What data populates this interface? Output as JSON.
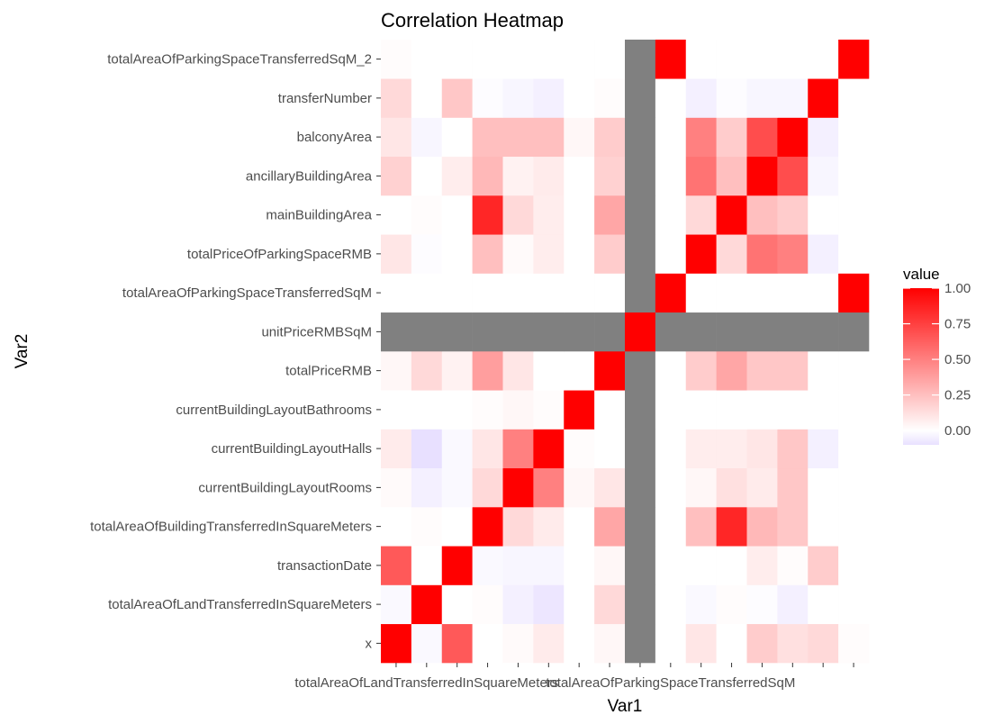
{
  "chart_data": {
    "type": "heatmap",
    "title": "Correlation Heatmap",
    "xlabel": "Var1",
    "ylabel": "Var2",
    "variables": [
      "x",
      "totalAreaOfLandTransferredInSquareMeters",
      "transactionDate",
      "totalAreaOfBuildingTransferredInSquareMeters",
      "currentBuildingLayoutRooms",
      "currentBuildingLayoutHalls",
      "currentBuildingLayoutBathrooms",
      "totalPriceRMB",
      "unitPriceRMBSqM",
      "totalAreaOfParkingSpaceTransferredSqM",
      "totalPriceOfParkingSpaceRMB",
      "mainBuildingArea",
      "ancillaryBuildingArea",
      "balconyArea",
      "transferNumber",
      "totalAreaOfParkingSpaceTransferredSqM_2"
    ],
    "x_tick_labels_visible": [
      "totalAreaOfLandTransferredInSquareMeters",
      "totalAreaOfParkingSpaceTransferredSqM"
    ],
    "matrix": [
      [
        1.0,
        -0.02,
        0.65,
        0.0,
        0.02,
        0.08,
        0.0,
        0.03,
        null,
        0.0,
        0.1,
        0.0,
        0.2,
        0.12,
        0.15,
        0.01
      ],
      [
        -0.02,
        1.0,
        0.0,
        0.01,
        -0.05,
        -0.08,
        0.0,
        0.15,
        null,
        0.0,
        -0.02,
        0.01,
        -0.01,
        -0.05,
        0.0,
        0.0
      ],
      [
        0.65,
        0.0,
        1.0,
        -0.02,
        -0.03,
        -0.03,
        0.0,
        0.03,
        null,
        0.0,
        0.0,
        0.0,
        0.07,
        0.01,
        0.2,
        0.0
      ],
      [
        0.0,
        0.01,
        0.0,
        1.0,
        0.15,
        0.08,
        0.0,
        0.35,
        null,
        0.0,
        0.25,
        0.85,
        0.28,
        0.22,
        0.0,
        0.0
      ],
      [
        0.02,
        -0.05,
        -0.02,
        0.15,
        1.0,
        0.5,
        0.03,
        0.1,
        null,
        0.0,
        0.03,
        0.12,
        0.08,
        0.22,
        0.0,
        0.0
      ],
      [
        0.08,
        -0.1,
        -0.02,
        0.1,
        0.5,
        1.0,
        0.01,
        0.0,
        null,
        0.0,
        0.07,
        0.07,
        0.1,
        0.22,
        -0.05,
        0.0
      ],
      [
        0.0,
        0.0,
        0.0,
        0.01,
        0.03,
        0.01,
        1.0,
        0.0,
        null,
        0.0,
        0.0,
        0.0,
        0.0,
        0.0,
        0.0,
        0.0
      ],
      [
        0.03,
        0.15,
        0.05,
        0.38,
        0.1,
        0.0,
        0.0,
        1.0,
        null,
        0.0,
        0.2,
        0.35,
        0.22,
        0.22,
        0.0,
        0.0
      ],
      [
        null,
        null,
        null,
        null,
        null,
        null,
        null,
        null,
        1.0,
        null,
        null,
        null,
        null,
        null,
        null,
        null
      ],
      [
        0.0,
        0.0,
        0.0,
        0.0,
        0.0,
        0.0,
        0.0,
        0.0,
        null,
        1.0,
        0.0,
        0.0,
        0.0,
        0.0,
        0.0,
        1.0
      ],
      [
        0.1,
        -0.01,
        0.0,
        0.25,
        0.02,
        0.07,
        0.0,
        0.2,
        null,
        0.0,
        1.0,
        0.15,
        0.55,
        0.5,
        -0.05,
        0.0
      ],
      [
        0.0,
        0.01,
        0.0,
        0.85,
        0.15,
        0.07,
        0.0,
        0.35,
        null,
        0.0,
        0.15,
        1.0,
        0.25,
        0.2,
        0.0,
        0.0
      ],
      [
        0.18,
        0.0,
        0.07,
        0.28,
        0.05,
        0.08,
        0.0,
        0.18,
        null,
        0.0,
        0.55,
        0.25,
        1.0,
        0.7,
        -0.03,
        0.0
      ],
      [
        0.1,
        -0.03,
        0.0,
        0.25,
        0.25,
        0.25,
        0.03,
        0.2,
        null,
        0.0,
        0.5,
        0.2,
        0.7,
        1.0,
        -0.05,
        0.0
      ],
      [
        0.15,
        0.0,
        0.22,
        -0.01,
        -0.03,
        -0.05,
        0.0,
        0.01,
        null,
        0.0,
        -0.05,
        -0.01,
        -0.03,
        -0.03,
        1.0,
        0.0
      ],
      [
        0.01,
        0.0,
        0.0,
        0.0,
        0.0,
        0.0,
        0.0,
        0.0,
        null,
        1.0,
        0.0,
        0.0,
        0.0,
        0.0,
        0.0,
        1.0
      ]
    ],
    "na_color": "#808080",
    "color_scale": {
      "low": "#e8e0ff",
      "mid": "#ffffff",
      "high": "#ff0000",
      "midpoint": 0
    },
    "legend": {
      "title": "value",
      "breaks": [
        1.0,
        0.75,
        0.5,
        0.25,
        0.0
      ],
      "labels": [
        "1.00",
        "0.75",
        "0.50",
        "0.25",
        "0.00"
      ],
      "range": [
        -0.1,
        1.0
      ],
      "placement": "right"
    },
    "grid": true
  }
}
